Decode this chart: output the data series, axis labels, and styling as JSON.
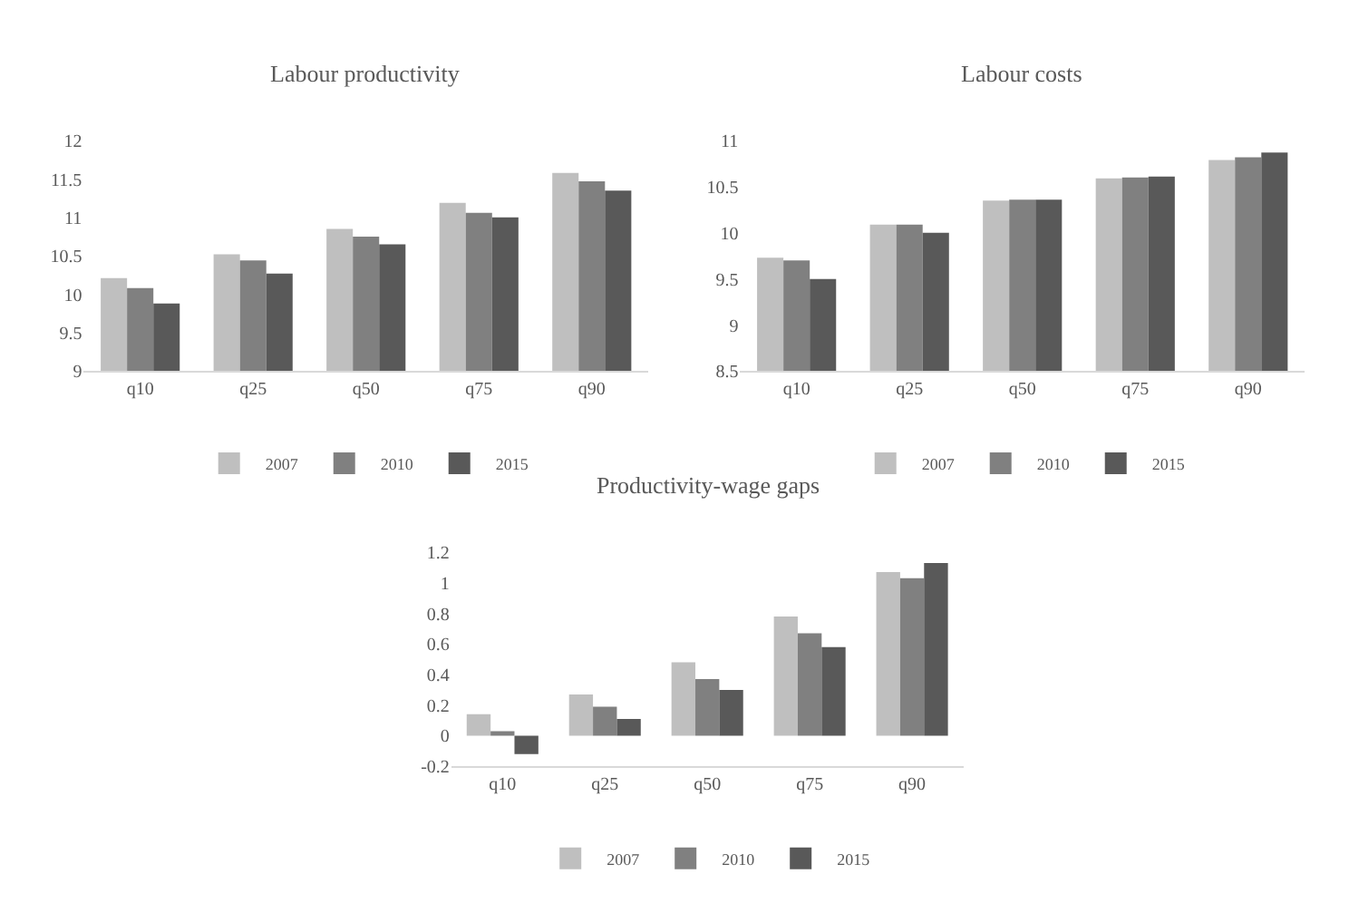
{
  "chart_data": [
    {
      "type": "bar",
      "title": "Labour productivity",
      "categories": [
        "q10",
        "q25",
        "q50",
        "q75",
        "q90"
      ],
      "series": [
        {
          "name": "2007",
          "color": "#bfbfbf",
          "values": [
            10.21,
            10.52,
            10.85,
            11.19,
            11.58
          ]
        },
        {
          "name": "2010",
          "color": "#808080",
          "values": [
            10.08,
            10.44,
            10.75,
            11.06,
            11.47
          ]
        },
        {
          "name": "2015",
          "color": "#595959",
          "values": [
            9.88,
            10.27,
            10.65,
            11.0,
            11.35
          ]
        }
      ],
      "ylim": [
        9,
        12
      ],
      "yticks": [
        9,
        9.5,
        10,
        10.5,
        11,
        11.5,
        12
      ],
      "grid": false,
      "legend": "bottom"
    },
    {
      "type": "bar",
      "title": "Labour costs",
      "categories": [
        "q10",
        "q25",
        "q50",
        "q75",
        "q90"
      ],
      "series": [
        {
          "name": "2007",
          "color": "#bfbfbf",
          "values": [
            9.73,
            10.09,
            10.35,
            10.59,
            10.79
          ]
        },
        {
          "name": "2010",
          "color": "#808080",
          "values": [
            9.7,
            10.09,
            10.36,
            10.6,
            10.82
          ]
        },
        {
          "name": "2015",
          "color": "#595959",
          "values": [
            9.5,
            10.0,
            10.36,
            10.61,
            10.87
          ]
        }
      ],
      "ylim": [
        8.5,
        11
      ],
      "yticks": [
        8.5,
        9,
        9.5,
        10,
        10.5,
        11
      ],
      "grid": false,
      "legend": "bottom"
    },
    {
      "type": "bar",
      "title": "Productivity-wage gaps",
      "categories": [
        "q10",
        "q25",
        "q50",
        "q75",
        "q90"
      ],
      "series": [
        {
          "name": "2007",
          "color": "#bfbfbf",
          "values": [
            0.14,
            0.27,
            0.48,
            0.78,
            1.07
          ]
        },
        {
          "name": "2010",
          "color": "#808080",
          "values": [
            0.03,
            0.19,
            0.37,
            0.67,
            1.03
          ]
        },
        {
          "name": "2015",
          "color": "#595959",
          "values": [
            -0.12,
            0.11,
            0.3,
            0.58,
            1.13
          ]
        }
      ],
      "ylim": [
        -0.2,
        1.2
      ],
      "yticks": [
        -0.2,
        0,
        0.2,
        0.4,
        0.6,
        0.8,
        1,
        1.2
      ],
      "grid": false,
      "legend": "bottom"
    }
  ]
}
